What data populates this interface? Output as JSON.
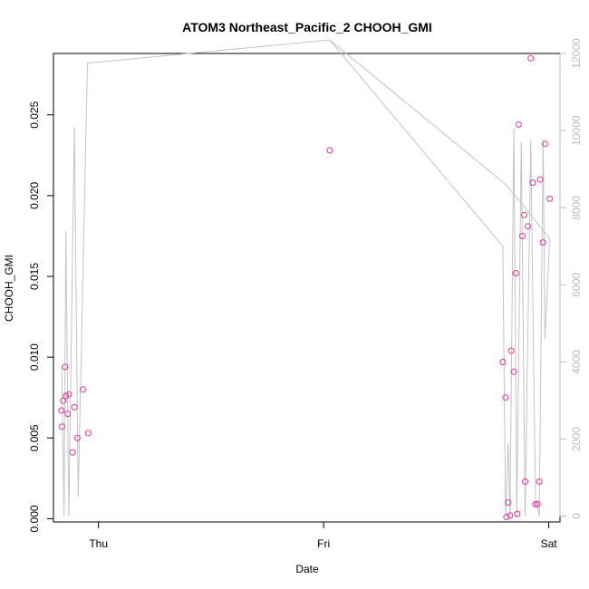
{
  "chart_data": {
    "type": "scatter",
    "title": "ATOM3 Northeast_Pacific_2 CHOOH_GMI",
    "xlabel": "Date",
    "ylabel": "CHOOH_GMI",
    "x_ticks": [
      {
        "label": "Thu",
        "day": 0
      },
      {
        "label": "Fri",
        "day": 1
      },
      {
        "label": "Sat",
        "day": 2
      }
    ],
    "x_range_days": [
      -0.2,
      2.05
    ],
    "ylim": [
      -0.0002,
      0.0288
    ],
    "y_ticks": [
      "0.000",
      "0.005",
      "0.010",
      "0.015",
      "0.020",
      "0.025"
    ],
    "y2lim": [
      -150,
      12000
    ],
    "y2_ticks": [
      "0",
      "2000",
      "4000",
      "6000",
      "8000",
      "10000",
      "12000"
    ],
    "colors": {
      "points": "#e8339a",
      "line": "#c3c3c3",
      "right_axis": "#bdbdbd"
    },
    "series": [
      {
        "role": "points",
        "axis": "left",
        "points": [
          {
            "day": -0.165,
            "value": 0.0067
          },
          {
            "day": -0.162,
            "value": 0.0057
          },
          {
            "day": -0.157,
            "value": 0.0073
          },
          {
            "day": -0.149,
            "value": 0.0094
          },
          {
            "day": -0.145,
            "value": 0.0076
          },
          {
            "day": -0.137,
            "value": 0.0065
          },
          {
            "day": -0.132,
            "value": 0.0077
          },
          {
            "day": -0.115,
            "value": 0.0041
          },
          {
            "day": -0.107,
            "value": 0.0069
          },
          {
            "day": -0.094,
            "value": 0.005
          },
          {
            "day": -0.069,
            "value": 0.008
          },
          {
            "day": -0.046,
            "value": 0.0053
          },
          {
            "day": 1.027,
            "value": 0.0228
          },
          {
            "day": 1.796,
            "value": 0.0097
          },
          {
            "day": 1.808,
            "value": 0.0075
          },
          {
            "day": 1.812,
            "value": 0.0001
          },
          {
            "day": 1.82,
            "value": 0.001
          },
          {
            "day": 1.828,
            "value": 0.0002
          },
          {
            "day": 1.833,
            "value": 0.0104
          },
          {
            "day": 1.845,
            "value": 0.0091
          },
          {
            "day": 1.853,
            "value": 0.0152
          },
          {
            "day": 1.86,
            "value": 0.0003
          },
          {
            "day": 1.866,
            "value": 0.0244
          },
          {
            "day": 1.883,
            "value": 0.0175
          },
          {
            "day": 1.891,
            "value": 0.0188
          },
          {
            "day": 1.895,
            "value": 0.0023
          },
          {
            "day": 1.907,
            "value": 0.0181
          },
          {
            "day": 1.92,
            "value": 0.0285
          },
          {
            "day": 1.929,
            "value": 0.0208
          },
          {
            "day": 1.941,
            "value": 0.0009
          },
          {
            "day": 1.95,
            "value": 0.0009
          },
          {
            "day": 1.958,
            "value": 0.0023
          },
          {
            "day": 1.962,
            "value": 0.021
          },
          {
            "day": 1.974,
            "value": 0.0171
          },
          {
            "day": 1.983,
            "value": 0.0232
          },
          {
            "day": 2.004,
            "value": 0.0198
          }
        ]
      },
      {
        "role": "line",
        "axis": "right",
        "points": [
          {
            "day": -0.163,
            "value": 3850
          },
          {
            "day": -0.153,
            "value": 0
          },
          {
            "day": -0.145,
            "value": 7400
          },
          {
            "day": -0.132,
            "value": 0
          },
          {
            "day": -0.107,
            "value": 10100
          },
          {
            "day": -0.09,
            "value": 500
          },
          {
            "day": -0.049,
            "value": 11750
          },
          {
            "day": 1.027,
            "value": 12350
          },
          {
            "day": 1.796,
            "value": 7000
          },
          {
            "day": 1.808,
            "value": 0
          },
          {
            "day": 1.82,
            "value": 1900
          },
          {
            "day": 1.828,
            "value": 0
          },
          {
            "day": 1.845,
            "value": 10050
          },
          {
            "day": 1.858,
            "value": 0
          },
          {
            "day": 1.878,
            "value": 9700
          },
          {
            "day": 1.895,
            "value": 0
          },
          {
            "day": 1.92,
            "value": 9750
          },
          {
            "day": 1.941,
            "value": 500
          },
          {
            "day": 1.958,
            "value": 0
          },
          {
            "day": 1.975,
            "value": 9750
          },
          {
            "day": 1.983,
            "value": 4600
          },
          {
            "day": 2.004,
            "value": 7200
          },
          {
            "day": 1.895,
            "value": 8000
          },
          {
            "day": 1.81,
            "value": 8600
          },
          {
            "day": 1.027,
            "value": 12350
          }
        ]
      }
    ]
  }
}
